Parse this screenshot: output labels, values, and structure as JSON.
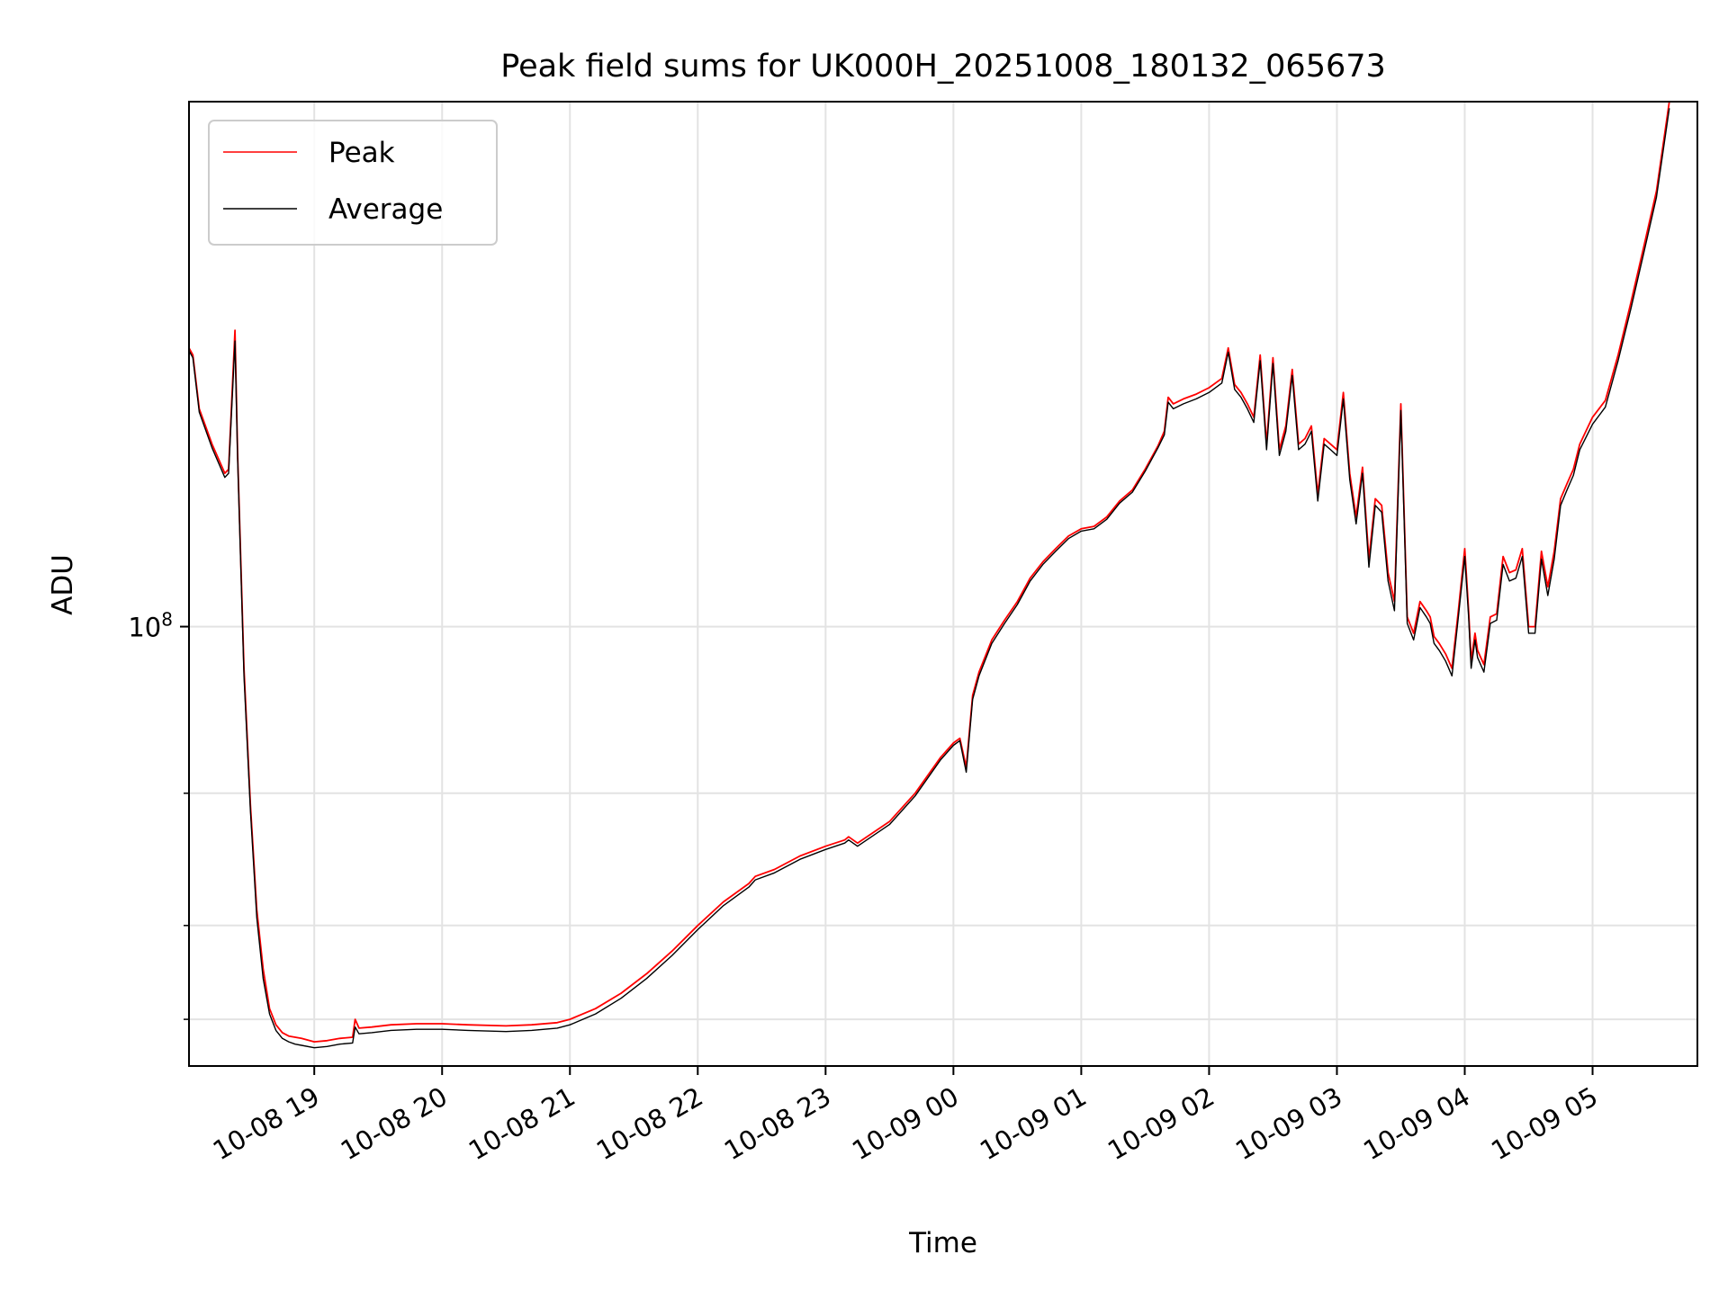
{
  "chart_data": {
    "type": "line",
    "title": "Peak field sums for UK000H_20251008_180132_065673",
    "xlabel": "Time",
    "ylabel": "ADU",
    "yscale": "log",
    "ylim": [
      26000000,
      500000000
    ],
    "xlim_hours": [
      18.02,
      29.82
    ],
    "grid": true,
    "legend_position": "upper-left",
    "x_ticks": [
      {
        "hour": 19,
        "label": "10-08 19"
      },
      {
        "hour": 20,
        "label": "10-08 20"
      },
      {
        "hour": 21,
        "label": "10-08 21"
      },
      {
        "hour": 22,
        "label": "10-08 22"
      },
      {
        "hour": 23,
        "label": "10-08 23"
      },
      {
        "hour": 24,
        "label": "10-09 00"
      },
      {
        "hour": 25,
        "label": "10-09 01"
      },
      {
        "hour": 26,
        "label": "10-09 02"
      },
      {
        "hour": 27,
        "label": "10-09 03"
      },
      {
        "hour": 28,
        "label": "10-09 04"
      },
      {
        "hour": 29,
        "label": "10-09 05"
      }
    ],
    "y_major_ticks": [
      {
        "value": 100000000,
        "base": "10",
        "exp": "8"
      }
    ],
    "y_minor_ticks": [
      30000000,
      40000000,
      60000000
    ],
    "series": [
      {
        "name": "Peak",
        "color": "#ff0000"
      },
      {
        "name": "Average",
        "color": "#000000"
      }
    ],
    "x": [
      18.02,
      18.05,
      18.1,
      18.2,
      18.3,
      18.33,
      18.38,
      18.4,
      18.45,
      18.5,
      18.55,
      18.6,
      18.65,
      18.7,
      18.75,
      18.8,
      18.85,
      18.9,
      19.0,
      19.1,
      19.2,
      19.3,
      19.32,
      19.35,
      19.45,
      19.6,
      19.8,
      20.0,
      20.2,
      20.5,
      20.7,
      20.9,
      21.0,
      21.2,
      21.4,
      21.6,
      21.8,
      22.0,
      22.2,
      22.4,
      22.45,
      22.6,
      22.8,
      23.0,
      23.15,
      23.18,
      23.25,
      23.5,
      23.7,
      23.9,
      24.0,
      24.05,
      24.1,
      24.15,
      24.2,
      24.3,
      24.4,
      24.5,
      24.6,
      24.7,
      24.8,
      24.9,
      25.0,
      25.1,
      25.2,
      25.3,
      25.4,
      25.5,
      25.6,
      25.65,
      25.68,
      25.72,
      25.8,
      25.9,
      26.0,
      26.1,
      26.15,
      26.2,
      26.25,
      26.3,
      26.35,
      26.4,
      26.45,
      26.5,
      26.55,
      26.6,
      26.65,
      26.7,
      26.75,
      26.8,
      26.85,
      26.9,
      26.95,
      27.0,
      27.05,
      27.1,
      27.15,
      27.2,
      27.25,
      27.3,
      27.35,
      27.4,
      27.45,
      27.5,
      27.55,
      27.6,
      27.65,
      27.7,
      27.73,
      27.76,
      27.8,
      27.85,
      27.9,
      27.95,
      28.0,
      28.03,
      28.05,
      28.08,
      28.1,
      28.15,
      28.2,
      28.25,
      28.3,
      28.35,
      28.4,
      28.45,
      28.5,
      28.55,
      28.6,
      28.65,
      28.7,
      28.75,
      28.8,
      28.85,
      28.9,
      29.0,
      29.1,
      29.2,
      29.3,
      29.4,
      29.5,
      29.6,
      29.7,
      29.8
    ],
    "peak": [
      235000000,
      230000000,
      195000000,
      175000000,
      160000000,
      162000000,
      248000000,
      170000000,
      88000000,
      58000000,
      42000000,
      35000000,
      31000000,
      29500000,
      28800000,
      28500000,
      28400000,
      28300000,
      28000000,
      28100000,
      28300000,
      28400000,
      30000000,
      29200000,
      29300000,
      29500000,
      29600000,
      29600000,
      29500000,
      29400000,
      29500000,
      29700000,
      30000000,
      31000000,
      32500000,
      34500000,
      37000000,
      40000000,
      43000000,
      45500000,
      46500000,
      47500000,
      49500000,
      51000000,
      52000000,
      52500000,
      51500000,
      55000000,
      60000000,
      67000000,
      70000000,
      71000000,
      65000000,
      81000000,
      87000000,
      96000000,
      102000000,
      108000000,
      116000000,
      122000000,
      127000000,
      132000000,
      135000000,
      136000000,
      140000000,
      147000000,
      152000000,
      162000000,
      174000000,
      182000000,
      202000000,
      198000000,
      201000000,
      204000000,
      208000000,
      214000000,
      235000000,
      210000000,
      205000000,
      198000000,
      190000000,
      230000000,
      175000000,
      228000000,
      172000000,
      185000000,
      220000000,
      175000000,
      178000000,
      185000000,
      150000000,
      178000000,
      175000000,
      172000000,
      205000000,
      160000000,
      140000000,
      163000000,
      123000000,
      148000000,
      145000000,
      118000000,
      108000000,
      198000000,
      103000000,
      98000000,
      108000000,
      105000000,
      103000000,
      97000000,
      95000000,
      92000000,
      88000000,
      105000000,
      127000000,
      105000000,
      90000000,
      98000000,
      93000000,
      89000000,
      103000000,
      104000000,
      124000000,
      118000000,
      119000000,
      127000000,
      100000000,
      100000000,
      126000000,
      113000000,
      126000000,
      148000000,
      155000000,
      162000000,
      175000000,
      190000000,
      200000000,
      230000000,
      270000000,
      320000000,
      380000000,
      500000000
    ],
    "average": [
      233000000,
      228000000,
      193000000,
      173000000,
      158000000,
      160000000,
      240000000,
      168000000,
      86000000,
      57000000,
      41000000,
      34000000,
      30500000,
      29000000,
      28300000,
      28000000,
      27800000,
      27700000,
      27500000,
      27600000,
      27800000,
      27900000,
      29300000,
      28700000,
      28800000,
      29000000,
      29100000,
      29100000,
      29000000,
      28900000,
      29000000,
      29200000,
      29500000,
      30500000,
      32000000,
      34000000,
      36500000,
      39500000,
      42500000,
      45000000,
      46000000,
      47000000,
      49000000,
      50500000,
      51500000,
      52000000,
      51000000,
      54500000,
      59500000,
      66500000,
      69500000,
      70500000,
      64000000,
      80000000,
      86000000,
      95000000,
      101000000,
      107000000,
      115000000,
      121000000,
      126000000,
      131000000,
      134000000,
      135000000,
      139000000,
      146000000,
      151000000,
      161000000,
      173000000,
      180000000,
      199000000,
      195000000,
      198000000,
      201000000,
      205000000,
      211000000,
      232000000,
      207000000,
      202000000,
      195000000,
      187000000,
      226000000,
      172000000,
      224000000,
      169000000,
      182000000,
      216000000,
      172000000,
      175000000,
      182000000,
      147000000,
      175000000,
      172000000,
      169000000,
      201000000,
      157000000,
      137000000,
      160000000,
      120000000,
      145000000,
      142000000,
      115000000,
      105000000,
      194000000,
      101000000,
      96000000,
      106000000,
      103000000,
      101000000,
      95000000,
      93000000,
      90000000,
      86000000,
      103000000,
      124000000,
      103000000,
      88000000,
      96000000,
      91000000,
      87000000,
      101000000,
      102000000,
      121000000,
      115000000,
      116000000,
      124000000,
      98000000,
      98000000,
      123000000,
      110000000,
      123000000,
      145000000,
      152000000,
      159000000,
      172000000,
      186000000,
      196000000,
      226000000,
      265000000,
      314000000,
      373000000,
      490000000
    ]
  }
}
